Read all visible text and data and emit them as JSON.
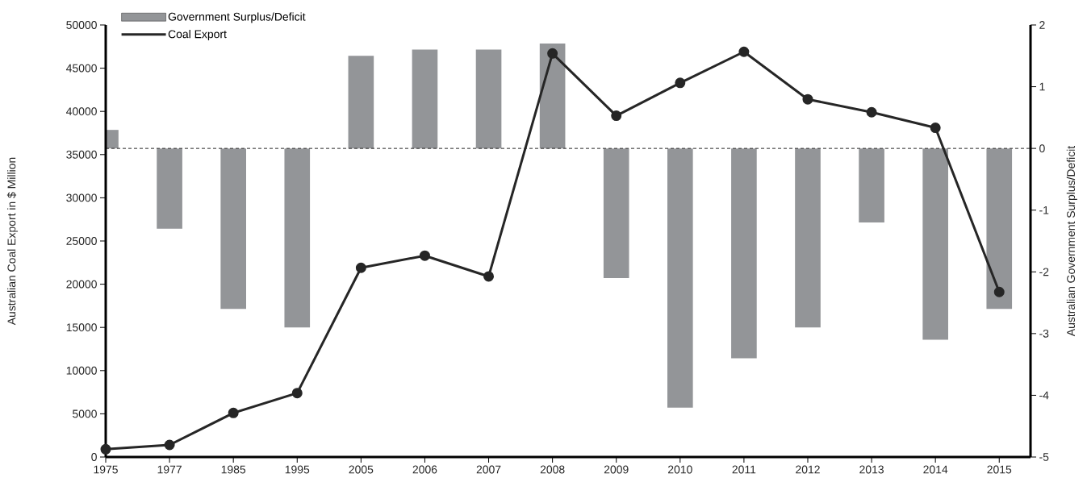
{
  "chart_data": {
    "type": "bar",
    "ylabel": "Australian Coal Export in $ Million",
    "y2label": "Australian Government Surplus/Deficit",
    "categories": [
      "1975",
      "1977",
      "1985",
      "1995",
      "2005",
      "2006",
      "2007",
      "2008",
      "2009",
      "2010",
      "2011",
      "2012",
      "2013",
      "2014",
      "2015"
    ],
    "series": [
      {
        "name": "Government Surplus/Deficit",
        "axis": "y2",
        "color": "#939598",
        "values": [
          0.3,
          -1.3,
          -2.6,
          -2.9,
          1.5,
          1.6,
          1.6,
          1.7,
          -2.1,
          -4.2,
          -3.4,
          -2.9,
          -1.2,
          -3.1,
          -2.6
        ]
      },
      {
        "name": "Coal Export",
        "type": "line",
        "color": "#262626",
        "values": [
          900,
          1400,
          5100,
          7400,
          21900,
          23300,
          20900,
          46700,
          39500,
          43300,
          46900,
          41400,
          39900,
          38100,
          19100
        ]
      }
    ],
    "ylim": [
      0,
      50000
    ],
    "yticks": [
      0,
      5000,
      10000,
      15000,
      20000,
      25000,
      30000,
      35000,
      40000,
      45000,
      50000
    ],
    "y2lim": [
      -5,
      2
    ],
    "y2ticks": [
      -5,
      -4,
      -3,
      -2,
      -1,
      0,
      1,
      2
    ],
    "ref_lines": [
      {
        "axis": "y2",
        "value": 0,
        "line_style": "dashed",
        "color": "#262626"
      }
    ],
    "legend": "top left",
    "marker": "circle",
    "line_style": "solid",
    "grid": false
  }
}
